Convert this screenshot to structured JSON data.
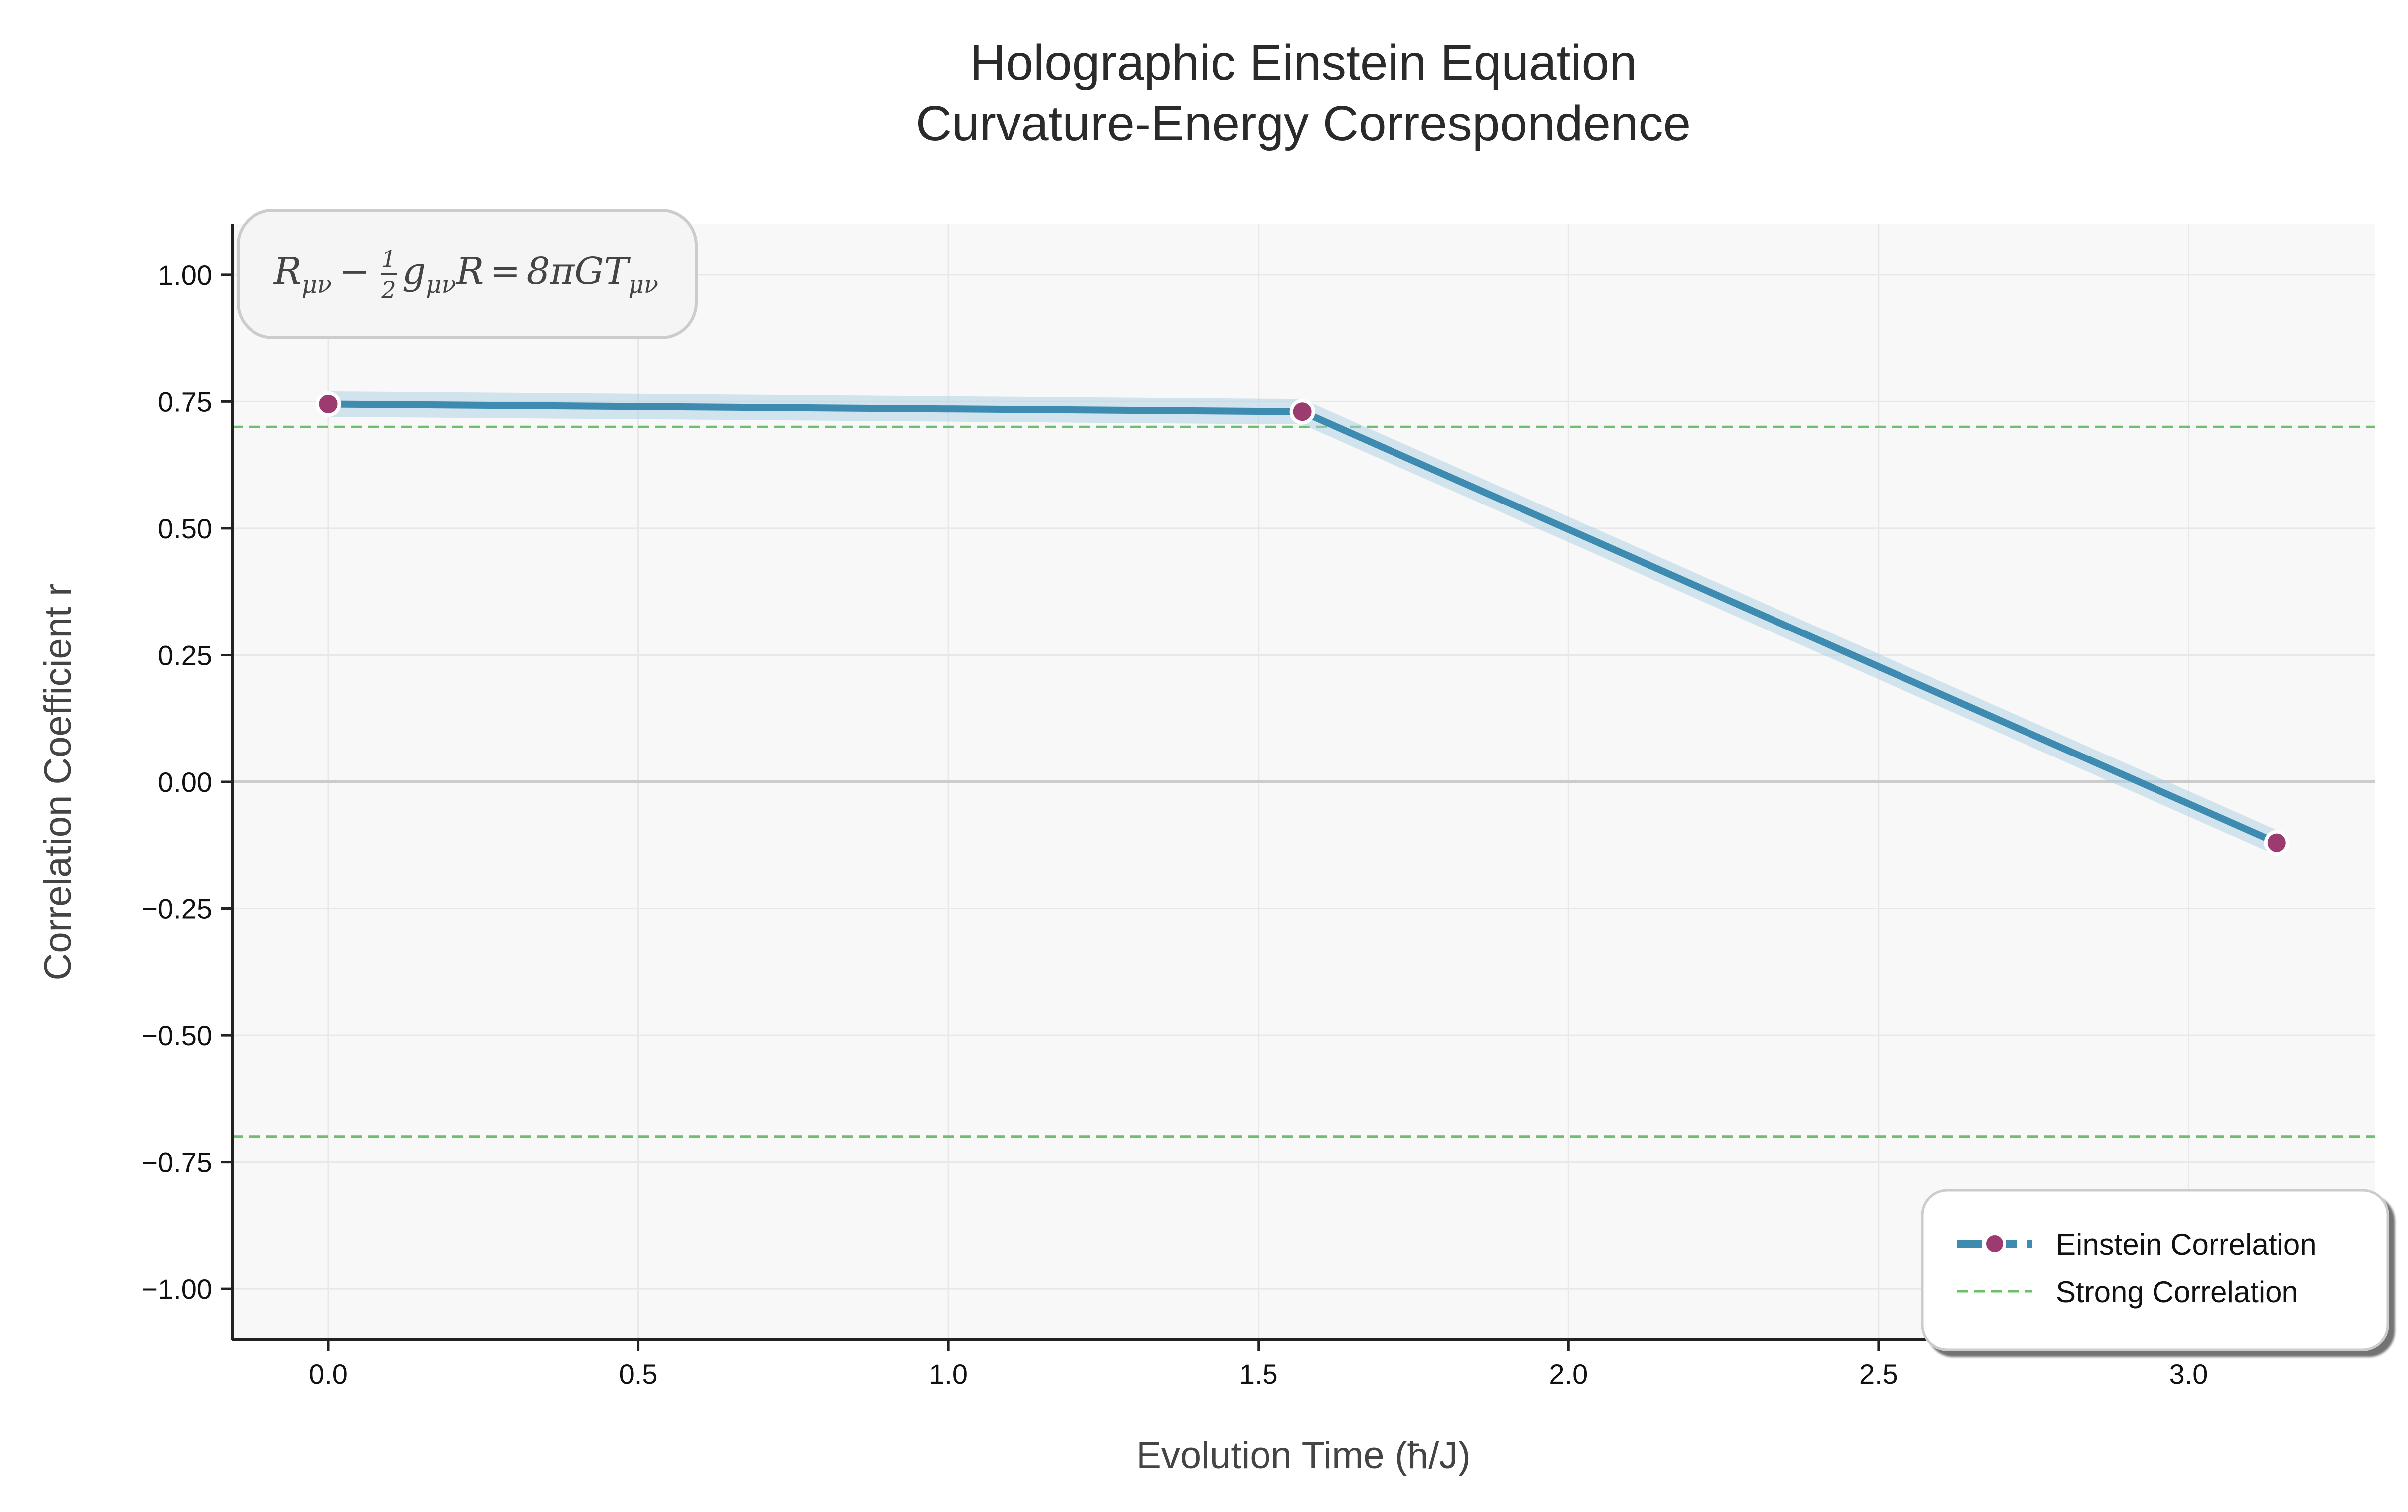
{
  "chart_data": {
    "type": "line",
    "title": [
      "Holographic Einstein Equation",
      "Curvature-Energy Correspondence"
    ],
    "xlabel": "Evolution Time (ħ/J)",
    "ylabel": "Correlation Coefficient r",
    "xlim": [
      -0.155,
      3.3
    ],
    "ylim": [
      -1.1,
      1.1
    ],
    "x_ticks": [
      0.0,
      0.5,
      1.0,
      1.5,
      2.0,
      2.5,
      3.0
    ],
    "x_tick_labels": [
      "0.0",
      "0.5",
      "1.0",
      "1.5",
      "2.0",
      "2.5",
      "3.0"
    ],
    "y_ticks": [
      1.0,
      0.75,
      0.5,
      0.25,
      0.0,
      -0.25,
      -0.5,
      -0.75,
      -1.0
    ],
    "y_tick_labels": [
      "1.00",
      "0.75",
      "0.50",
      "0.25",
      "0.00",
      "−0.25",
      "−0.50",
      "−0.75",
      "−1.00"
    ],
    "grid": true,
    "series": [
      {
        "name": "Einstein Correlation",
        "x": [
          0.0,
          1.571,
          3.142
        ],
        "y": [
          0.745,
          0.73,
          -0.12
        ],
        "band_halfwidth": 0.025,
        "line_color": "#3d8bb0",
        "band_color": "#a9cde0",
        "marker_color": "#9c3b70"
      }
    ],
    "reference_lines": [
      {
        "name": "Strong Correlation",
        "y": 0.7,
        "color": "#6dbf6d"
      },
      {
        "y": -0.7,
        "color": "#6dbf6d"
      },
      {
        "y": 0.0,
        "color": "#cccccc"
      }
    ],
    "annotation": {
      "lhs_R": "R",
      "lhs_R_sub": "μν",
      "minus": "−",
      "frac_num": "1",
      "frac_den": "2",
      "g": "g",
      "g_sub": "μν",
      "R2": "R",
      "equals": "=",
      "rhs": "8πGT",
      "rhs_sub": "μν"
    },
    "legend": {
      "position": "bottom-right",
      "entries": [
        "Einstein Correlation",
        "Strong Correlation"
      ]
    }
  }
}
